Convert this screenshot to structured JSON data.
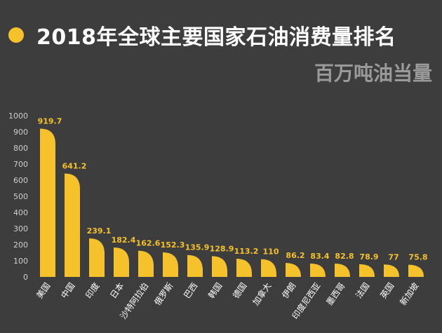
{
  "title": "2018年全球主要国家石油消费量排名",
  "subtitle": "百万吨油当量",
  "colors": {
    "background": "#3d3d3d",
    "bar": "#f5c22c",
    "title": "#ffffff",
    "subtitle": "#9a9a9a"
  },
  "chart_data": {
    "type": "bar",
    "title": "2018年全球主要国家石油消费量排名",
    "subtitle": "百万吨油当量",
    "xlabel": "",
    "ylabel": "",
    "ylim": [
      0,
      1000
    ],
    "yticks": [
      0,
      100,
      200,
      300,
      400,
      500,
      600,
      700,
      800,
      900,
      1000
    ],
    "grid": false,
    "categories": [
      "美国",
      "中国",
      "印度",
      "日本",
      "沙特阿拉伯",
      "俄罗斯",
      "巴西",
      "韩国",
      "德国",
      "加拿大",
      "伊朗",
      "印度尼西亚",
      "墨西哥",
      "法国",
      "英国",
      "新加坡"
    ],
    "values": [
      919.7,
      641.2,
      239.1,
      182.4,
      162.6,
      152.3,
      135.9,
      128.9,
      113.2,
      110,
      86.2,
      83.4,
      82.8,
      78.9,
      77,
      75.8
    ],
    "value_labels": [
      "919.7",
      "641.2",
      "239.1",
      "182.4",
      "162.6",
      "152.3",
      "135.9",
      "128.9",
      "113.2",
      "110",
      "86.2",
      "83.4",
      "82.8",
      "78.9",
      "77",
      "75.8"
    ]
  }
}
